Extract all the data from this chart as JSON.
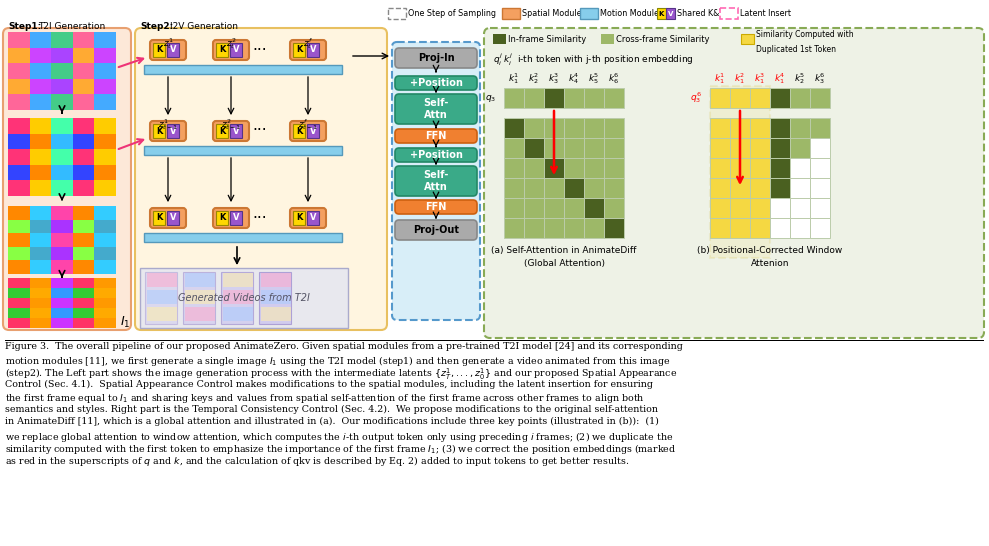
{
  "fig_width": 9.89,
  "fig_height": 5.46,
  "bg_color": "#ffffff",
  "step1_bg": "#fde8d8",
  "step1_ec": "#e8a070",
  "step2_bg": "#fff5e0",
  "step2_ec": "#e8c060",
  "pipeline_bg": "#d8eef8",
  "pipeline_ec": "#5599cc",
  "attn_bg": "#eef2e6",
  "attn_ec": "#88aa55",
  "dark_green": "#4a6020",
  "light_green": "#9db868",
  "yellow_cell": "#f5d842",
  "white_cell": "#ffffff",
  "light_gray_cell": "#dddddd",
  "pipeline_teal": "#3aaa88",
  "pipeline_orange": "#f08030",
  "pipeline_gray": "#aaaaaa",
  "kv_orange": "#f4a060",
  "kv_yellow": "#ffd700",
  "kv_purple": "#9955cc",
  "motion_blue": "#87ceeb",
  "pink_arrow": "#ee3377",
  "caption_lines": [
    "Figure 3.  The overall pipeline of our proposed AnimateZero. Given spatial modules from a pre-trained T2I model [24] and its corresponding",
    "motion modules [11], we first generate a single image $I_1$ using the T2I model (step1) and then generate a video animated from this image",
    "(step2). The Left part shows the image generation process with the intermediate latents $\\{z_T^1,...,z_0^1\\}$ and our proposed Spatial Appearance",
    "Control (Sec. 4.1).  Spatial Appearance Control makes modifications to the spatial modules, including the latent insertion for ensuring",
    "the first frame equal to $I_1$ and sharing keys and values from spatial self-attention of the first frame across other frames to align both",
    "semantics and styles. Right part is the Temporal Consistency Control (Sec. 4.2).  We propose modifications to the original self-attention",
    "in AnimateDiff [11], which is a global attention and illustrated in (a).  Our modifications include three key points (illustrated in (b)):  (1)",
    "we replace global attention to window attention, which computes the $i$-th output token only using preceding $i$ frames; (2) we duplicate the",
    "similarity computed with the first token to emphasize the importance of the first frame $I_1$; (3) we correct the position embeddings (marked",
    "as red in the superscripts of $q$ and $k$, and the calculation of qkv is described by Eq. 2) added to input tokens to get better results."
  ]
}
